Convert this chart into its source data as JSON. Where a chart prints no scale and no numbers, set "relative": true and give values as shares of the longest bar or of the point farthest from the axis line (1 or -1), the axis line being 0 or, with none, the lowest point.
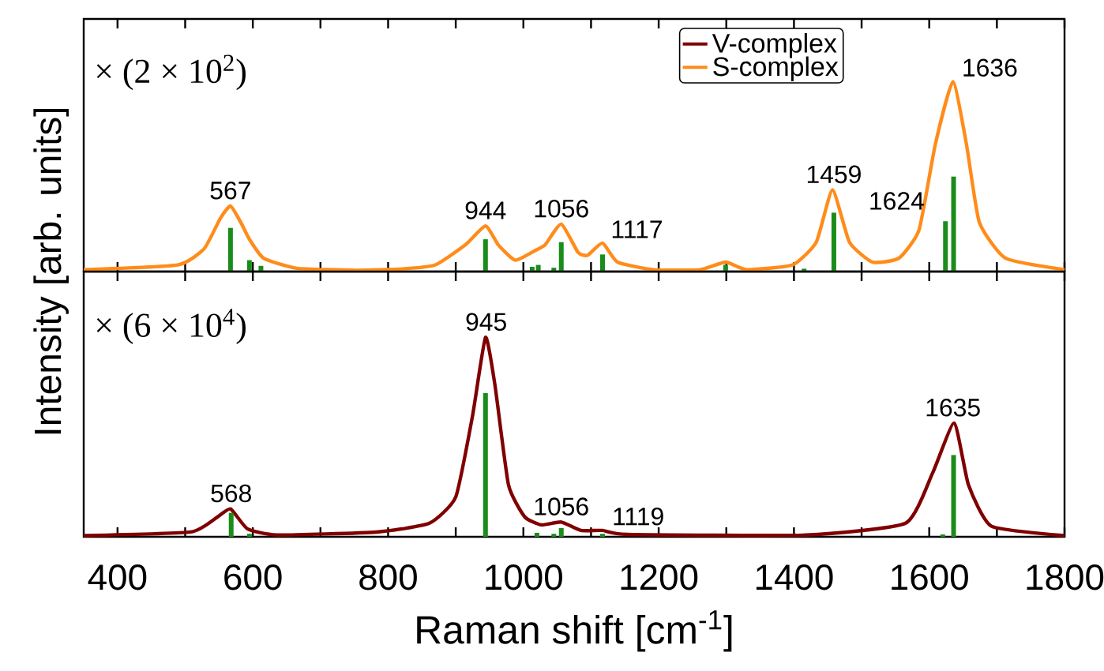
{
  "chart_data": [
    {
      "type": "line",
      "relative": true,
      "xlim": [
        350,
        1800
      ],
      "xticks": [
        400,
        {
          "value": 500,
          "label": null
        },
        600,
        {
          "value": 700,
          "label": null
        },
        800,
        {
          "value": 900,
          "label": null
        },
        1000,
        {
          "value": 1100,
          "label": null
        },
        1200,
        {
          "value": 1300,
          "label": null
        },
        1400,
        {
          "value": 1500,
          "label": null
        },
        1600,
        {
          "value": 1700,
          "label": null
        },
        1800
      ],
      "tick_labels": false,
      "ylabel": "Intensity [arb. units]",
      "legend": "top right",
      "series": [
        {
          "name": "S-complex",
          "color": "#ff8c1a",
          "x": [
            350,
            489,
            528,
            552,
            567,
            582,
            595,
            616,
            665,
            753,
            822,
            870,
            914,
            944,
            963,
            988,
            1017,
            1032,
            1056,
            1081,
            1095,
            1117,
            1139,
            1193,
            1261,
            1299,
            1330,
            1398,
            1433,
            1457,
            1482,
            1516,
            1555,
            1585,
            1609,
            1635,
            1655,
            1674,
            1713,
            1800
          ],
          "values": [
            0.01,
            0.035,
            0.12,
            0.28,
            0.345,
            0.26,
            0.17,
            0.07,
            0.017,
            0.007,
            0.014,
            0.035,
            0.14,
            0.24,
            0.14,
            0.06,
            0.11,
            0.14,
            0.25,
            0.1,
            0.086,
            0.15,
            0.05,
            0.01,
            0.01,
            0.05,
            0.01,
            0.035,
            0.155,
            0.43,
            0.155,
            0.05,
            0.07,
            0.22,
            0.67,
            1.0,
            0.67,
            0.26,
            0.07,
            0.01
          ]
        },
        {
          "type": "bar",
          "color": "#1a8c1a",
          "x": [
            567,
            595,
            612,
            944,
            1013,
            1022,
            1045,
            1056,
            1117,
            1299,
            1415,
            1459,
            1624,
            1636
          ],
          "values": [
            0.23,
            0.06,
            0.03,
            0.17,
            0.025,
            0.035,
            0.02,
            0.155,
            0.09,
            0.035,
            0.015,
            0.31,
            0.265,
            0.5
          ]
        }
      ],
      "annotations": [
        "× (2 × 10$^{2}$)",
        {
          "text": "567",
          "x": 567,
          "y": 0.345
        },
        {
          "text": "944",
          "x": 944,
          "y": 0.24
        },
        {
          "text": "1056",
          "x": 1056,
          "y": 0.25
        },
        {
          "text": "1117",
          "x": 1117,
          "y": 0.15
        },
        {
          "text": "1459",
          "x": 1459,
          "y": 0.43
        },
        {
          "text": "1624",
          "x": 1624,
          "y": 0.265
        },
        {
          "text": "1636",
          "x": 1636,
          "y": 1.0
        }
      ]
    },
    {
      "type": "line",
      "relative": true,
      "xlim": [
        350,
        1800
      ],
      "xticks": [
        400,
        {
          "value": 500,
          "label": null
        },
        600,
        {
          "value": 700,
          "label": null
        },
        800,
        {
          "value": 900,
          "label": null
        },
        1000,
        {
          "value": 1100,
          "label": null
        },
        1200,
        {
          "value": 1300,
          "label": null
        },
        1400,
        {
          "value": 1500,
          "label": null
        },
        1600,
        {
          "value": 1700,
          "label": null
        },
        1800
      ],
      "tick_labels": "x",
      "xlabel": "Raman shift [cm$^{-1}$]",
      "series": [
        {
          "name": "V-complex",
          "color": "#800000",
          "x": [
            350,
            508,
            548,
            567,
            592,
            636,
            783,
            861,
            900,
            925,
            944,
            958,
            978,
            1002,
            1027,
            1056,
            1085,
            1117,
            1154,
            1418,
            1565,
            1605,
            1637,
            1658,
            1692,
            1800
          ],
          "values": [
            0.006,
            0.024,
            0.1,
            0.14,
            0.04,
            0.009,
            0.024,
            0.068,
            0.2,
            0.61,
            1.0,
            0.76,
            0.26,
            0.1,
            0.06,
            0.074,
            0.032,
            0.032,
            0.012,
            0.009,
            0.068,
            0.32,
            0.57,
            0.26,
            0.053,
            0.006
          ]
        },
        {
          "type": "bar",
          "color": "#1a8c1a",
          "x": [
            568,
            595,
            944,
            1020,
            1045,
            1056,
            1117,
            1620,
            1636
          ],
          "values": [
            0.12,
            0.015,
            0.72,
            0.02,
            0.015,
            0.044,
            0.015,
            0.012,
            0.41
          ]
        }
      ],
      "annotations": [
        "× (6 × 10$^{4}$)",
        {
          "text": "568",
          "x": 568,
          "y": 0.14
        },
        {
          "text": "945",
          "x": 945,
          "y": 1.0
        },
        {
          "text": "1056",
          "x": 1056,
          "y": 0.074
        },
        {
          "text": "1119",
          "x": 1119,
          "y": 0.032
        },
        {
          "text": "1635",
          "x": 1635,
          "y": 0.57
        }
      ]
    }
  ]
}
